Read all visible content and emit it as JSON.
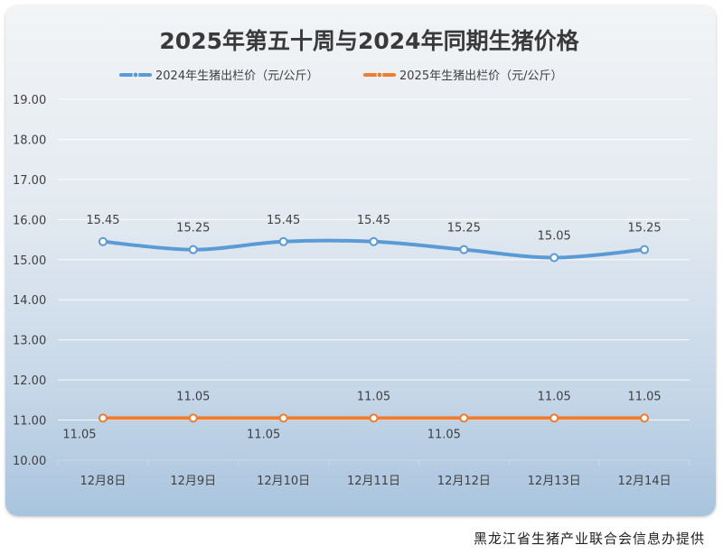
{
  "chart_data": {
    "type": "line",
    "title": "2025年第五十周与2024年同期生猪价格",
    "categories": [
      "12月8日",
      "12月9日",
      "12月10日",
      "12月11日",
      "12月12日",
      "12月13日",
      "12月14日"
    ],
    "series": [
      {
        "name": "2024年生猪出栏价（元/公斤）",
        "color": "#5b9bd5",
        "values": [
          15.45,
          15.25,
          15.45,
          15.45,
          15.25,
          15.05,
          15.25
        ],
        "labels": [
          "15.45",
          "15.25",
          "15.45",
          "15.45",
          "15.25",
          "15.05",
          "15.25"
        ],
        "label_position": [
          "above",
          "above",
          "above",
          "above",
          "above",
          "above",
          "above"
        ]
      },
      {
        "name": "2025年生猪出栏价（元/公斤）",
        "color": "#ed7d31",
        "values": [
          11.05,
          11.05,
          11.05,
          11.05,
          11.05,
          11.05,
          11.05
        ],
        "labels": [
          "11.05",
          "11.05",
          "11.05",
          "11.05",
          "11.05",
          "11.05",
          "11.05"
        ],
        "label_position": [
          "below",
          "above",
          "below",
          "above",
          "below",
          "above",
          "above"
        ]
      }
    ],
    "ylim": [
      10,
      19
    ],
    "yticks": [
      "10.00",
      "11.00",
      "12.00",
      "13.00",
      "14.00",
      "15.00",
      "16.00",
      "17.00",
      "18.00",
      "19.00"
    ],
    "grid": true,
    "legend": "top",
    "xlabel": "",
    "ylabel": ""
  },
  "source_note": "黑龙江省生猪产业联合会信息办提供"
}
